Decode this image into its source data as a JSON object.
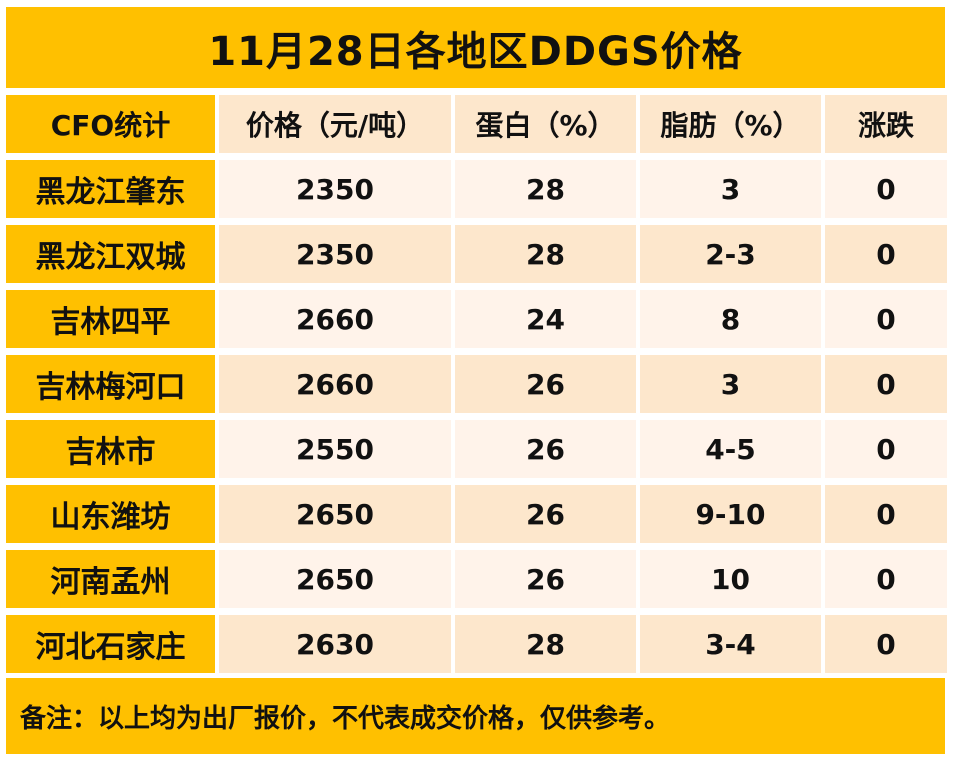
{
  "title": "11月28日各地区DDGS价格",
  "headers": [
    "CFO统计",
    "价格（元/吨）",
    "蛋白（%）",
    "脂肪（%）",
    "涨跌"
  ],
  "rows": [
    {
      "region": "黑龙江肇东",
      "price": "2350",
      "protein": "28",
      "fat": "3",
      "change": "0"
    },
    {
      "region": "黑龙江双城",
      "price": "2350",
      "protein": "28",
      "fat": "2-3",
      "change": "0"
    },
    {
      "region": "吉林四平",
      "price": "2660",
      "protein": "24",
      "fat": "8",
      "change": "0"
    },
    {
      "region": "吉林梅河口",
      "price": "2660",
      "protein": "26",
      "fat": "3",
      "change": "0"
    },
    {
      "region": "吉林市",
      "price": "2550",
      "protein": "26",
      "fat": "4-5",
      "change": "0"
    },
    {
      "region": "山东潍坊",
      "price": "2650",
      "protein": "26",
      "fat": "9-10",
      "change": "0"
    },
    {
      "region": "河南孟州",
      "price": "2650",
      "protein": "26",
      "fat": "10",
      "change": "0"
    },
    {
      "region": "河北石家庄",
      "price": "2630",
      "protein": "28",
      "fat": "3-4",
      "change": "0"
    }
  ],
  "note": "备注：以上均为出厂报价，不代表成交价格，仅供参考。",
  "colors": {
    "accent": "#ffc000",
    "row_light": "#fff3ea",
    "row_dark": "#fde7cc"
  }
}
